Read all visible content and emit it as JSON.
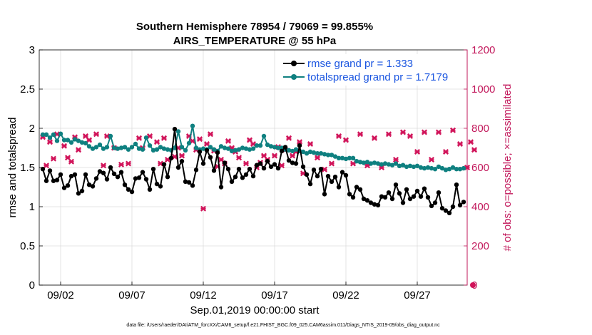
{
  "colors": {
    "rmse": "#000000",
    "spread": "#0f8080",
    "obs": "#d1145a",
    "right_axis": "#c2185b",
    "legend_text": "#1a55e0",
    "grid": "#dddddd"
  },
  "chart_data": {
    "type": "line",
    "title": "Southern Hemisphere 78954 / 79069 = 99.855%",
    "subtitle": "AIRS_TEMPERATURE @ 55 hPa",
    "xlabel": "Sep.01,2019 00:00:00 start",
    "ylabel": "rmse and totalspread",
    "y2label": "# of obs: o=possible; ×=assimilated",
    "footer": "data file: /Users/raeder/DAI/ATM_forcXX/CAM6_setup/f.e21.FHIST_BGC.f09_025.CAM6assim.011/Diags_NTrS_2019-09/obs_diag_output.nc",
    "xlim": [
      0.5,
      30.5
    ],
    "ylim": [
      0,
      3
    ],
    "y2lim": [
      0,
      1200
    ],
    "x_ticks": [
      {
        "value": 2,
        "label": "09/02"
      },
      {
        "value": 7,
        "label": "09/07"
      },
      {
        "value": 12,
        "label": "09/12"
      },
      {
        "value": 17,
        "label": "09/17"
      },
      {
        "value": 22,
        "label": "09/22"
      },
      {
        "value": 27,
        "label": "09/27"
      }
    ],
    "y_ticks": [
      {
        "value": 0,
        "label": "0"
      },
      {
        "value": 0.5,
        "label": "0.5"
      },
      {
        "value": 1,
        "label": "1"
      },
      {
        "value": 1.5,
        "label": "1.5"
      },
      {
        "value": 2,
        "label": "2"
      },
      {
        "value": 2.5,
        "label": "2.5"
      },
      {
        "value": 3,
        "label": "3"
      }
    ],
    "y2_ticks": [
      {
        "value": 0,
        "label": "0"
      },
      {
        "value": 200,
        "label": "200"
      },
      {
        "value": 400,
        "label": "400"
      },
      {
        "value": 600,
        "label": "600"
      },
      {
        "value": 800,
        "label": "800"
      },
      {
        "value": 1000,
        "label": "1000"
      },
      {
        "value": 1200,
        "label": "1200"
      }
    ],
    "legend": [
      {
        "name": "rmse grand pr = 1.333"
      },
      {
        "name": "totalspread grand pr = 1.7179"
      }
    ],
    "x_start": 0.75,
    "x_step": 0.25,
    "rmse": [
      1.48,
      1.33,
      1.46,
      1.33,
      1.34,
      1.41,
      1.24,
      1.27,
      1.39,
      1.41,
      1.17,
      1.2,
      1.41,
      1.28,
      1.26,
      1.36,
      1.45,
      1.43,
      1.35,
      1.5,
      1.42,
      1.38,
      1.44,
      1.28,
      1.22,
      1.19,
      1.36,
      1.37,
      1.44,
      1.35,
      1.22,
      1.48,
      1.29,
      1.26,
      1.54,
      1.38,
      1.62,
      1.99,
      1.5,
      1.58,
      1.32,
      1.31,
      1.27,
      1.47,
      1.7,
      1.55,
      1.72,
      1.63,
      1.46,
      1.69,
      1.25,
      1.56,
      1.48,
      1.32,
      1.38,
      1.48,
      1.37,
      1.41,
      1.48,
      1.39,
      1.53,
      1.55,
      1.49,
      1.58,
      1.51,
      1.54,
      1.49,
      1.71,
      1.76,
      1.59,
      1.56,
      1.55,
      1.78,
      1.51,
      1.41,
      1.29,
      1.47,
      1.39,
      1.48,
      1.16,
      1.39,
      1.32,
      1.38,
      1.25,
      1.44,
      1.4,
      1.16,
      1.12,
      1.25,
      1.22,
      1.1,
      1.08,
      1.05,
      1.03,
      1.02,
      1.13,
      1.12,
      1.18,
      1.1,
      1.28,
      1.17,
      1.05,
      1.22,
      1.1,
      1.13,
      1.2,
      1.13,
      1.23,
      1.12,
      1.01,
      1.05,
      1.18,
      0.98,
      0.95,
      0.92,
      1.0,
      1.28,
      1.02,
      1.06
    ],
    "totalspread": [
      1.92,
      1.92,
      1.88,
      1.92,
      1.84,
      1.93,
      1.85,
      1.85,
      1.82,
      1.86,
      1.84,
      1.82,
      1.81,
      1.77,
      1.74,
      1.76,
      1.79,
      1.74,
      1.76,
      1.9,
      1.75,
      1.74,
      1.75,
      1.76,
      1.73,
      1.76,
      1.8,
      1.74,
      1.73,
      1.88,
      1.78,
      1.72,
      1.73,
      1.76,
      1.74,
      1.73,
      1.72,
      1.75,
      1.96,
      1.76,
      1.72,
      1.81,
      2.03,
      1.75,
      1.73,
      1.74,
      1.73,
      1.76,
      1.73,
      1.71,
      1.77,
      1.75,
      1.74,
      1.71,
      1.72,
      1.73,
      1.75,
      1.74,
      1.73,
      1.74,
      1.78,
      1.78,
      1.9,
      1.79,
      1.77,
      1.76,
      1.75,
      1.75,
      1.73,
      1.72,
      1.71,
      1.73,
      1.71,
      1.7,
      1.68,
      1.7,
      1.69,
      1.68,
      1.68,
      1.67,
      1.66,
      1.66,
      1.64,
      1.62,
      1.62,
      1.61,
      1.62,
      1.62,
      1.58,
      1.57,
      1.56,
      1.57,
      1.55,
      1.56,
      1.55,
      1.54,
      1.55,
      1.54,
      1.53,
      1.55,
      1.52,
      1.53,
      1.51,
      1.52,
      1.51,
      1.52,
      1.5,
      1.49,
      1.5,
      1.49,
      1.48,
      1.51,
      1.49,
      1.47,
      1.48,
      1.5,
      1.48,
      1.48,
      1.49
    ],
    "obs_assimilated_points": [
      {
        "x": 0.75,
        "y": 755
      },
      {
        "x": 1.0,
        "y": 610
      },
      {
        "x": 1.25,
        "y": 730
      },
      {
        "x": 1.5,
        "y": 645
      },
      {
        "x": 1.75,
        "y": 770
      },
      {
        "x": 2.25,
        "y": 710
      },
      {
        "x": 2.5,
        "y": 650
      },
      {
        "x": 2.75,
        "y": 630
      },
      {
        "x": 3.0,
        "y": 755
      },
      {
        "x": 3.25,
        "y": 690
      },
      {
        "x": 3.75,
        "y": 760
      },
      {
        "x": 4.0,
        "y": 740
      },
      {
        "x": 4.5,
        "y": 770
      },
      {
        "x": 5.0,
        "y": 610
      },
      {
        "x": 5.25,
        "y": 760
      },
      {
        "x": 5.75,
        "y": 700
      },
      {
        "x": 6.25,
        "y": 615
      },
      {
        "x": 6.75,
        "y": 620
      },
      {
        "x": 7.5,
        "y": 750
      },
      {
        "x": 7.75,
        "y": 700
      },
      {
        "x": 8.25,
        "y": 760
      },
      {
        "x": 8.75,
        "y": 730
      },
      {
        "x": 9.0,
        "y": 620
      },
      {
        "x": 9.25,
        "y": 750
      },
      {
        "x": 9.5,
        "y": 640
      },
      {
        "x": 10.0,
        "y": 655
      },
      {
        "x": 10.25,
        "y": 700
      },
      {
        "x": 10.5,
        "y": 660
      },
      {
        "x": 11.0,
        "y": 760
      },
      {
        "x": 11.25,
        "y": 735
      },
      {
        "x": 11.5,
        "y": 690
      },
      {
        "x": 11.75,
        "y": 745
      },
      {
        "x": 12.0,
        "y": 390
      },
      {
        "x": 12.25,
        "y": 720
      },
      {
        "x": 12.5,
        "y": 770
      },
      {
        "x": 12.75,
        "y": 685
      },
      {
        "x": 13.0,
        "y": 605
      },
      {
        "x": 13.25,
        "y": 640
      },
      {
        "x": 13.5,
        "y": 620
      },
      {
        "x": 13.75,
        "y": 735
      },
      {
        "x": 14.0,
        "y": 700
      },
      {
        "x": 14.25,
        "y": 680
      },
      {
        "x": 14.5,
        "y": 650
      },
      {
        "x": 15.0,
        "y": 620
      },
      {
        "x": 15.25,
        "y": 740
      },
      {
        "x": 15.5,
        "y": 720
      },
      {
        "x": 15.75,
        "y": 600
      },
      {
        "x": 16.0,
        "y": 625
      },
      {
        "x": 16.25,
        "y": 660
      },
      {
        "x": 16.5,
        "y": 640
      },
      {
        "x": 17.0,
        "y": 660
      },
      {
        "x": 17.25,
        "y": 705
      },
      {
        "x": 17.5,
        "y": 610
      },
      {
        "x": 17.75,
        "y": 690
      },
      {
        "x": 18.0,
        "y": 750
      },
      {
        "x": 18.25,
        "y": 660
      },
      {
        "x": 18.5,
        "y": 680
      },
      {
        "x": 18.75,
        "y": 730
      },
      {
        "x": 19.0,
        "y": 570
      },
      {
        "x": 19.5,
        "y": 720
      },
      {
        "x": 20.0,
        "y": 650
      },
      {
        "x": 20.5,
        "y": 590
      },
      {
        "x": 21.0,
        "y": 620
      },
      {
        "x": 21.5,
        "y": 760
      },
      {
        "x": 22.0,
        "y": 740
      },
      {
        "x": 22.5,
        "y": 620
      },
      {
        "x": 23.0,
        "y": 770
      },
      {
        "x": 23.5,
        "y": 610
      },
      {
        "x": 24.0,
        "y": 750
      },
      {
        "x": 24.5,
        "y": 600
      },
      {
        "x": 25.0,
        "y": 770
      },
      {
        "x": 25.5,
        "y": 640
      },
      {
        "x": 26.0,
        "y": 780
      },
      {
        "x": 26.5,
        "y": 760
      },
      {
        "x": 27.0,
        "y": 680
      },
      {
        "x": 27.5,
        "y": 780
      },
      {
        "x": 28.0,
        "y": 640
      },
      {
        "x": 28.5,
        "y": 780
      },
      {
        "x": 29.0,
        "y": 680
      },
      {
        "x": 29.5,
        "y": 790
      },
      {
        "x": 30.0,
        "y": 720
      },
      {
        "x": 30.5,
        "y": 600
      },
      {
        "x": 30.75,
        "y": 730
      },
      {
        "x": 31.0,
        "y": 690
      }
    ],
    "obs_possible_points": [
      {
        "x": 31.0,
        "y": 0
      }
    ]
  }
}
